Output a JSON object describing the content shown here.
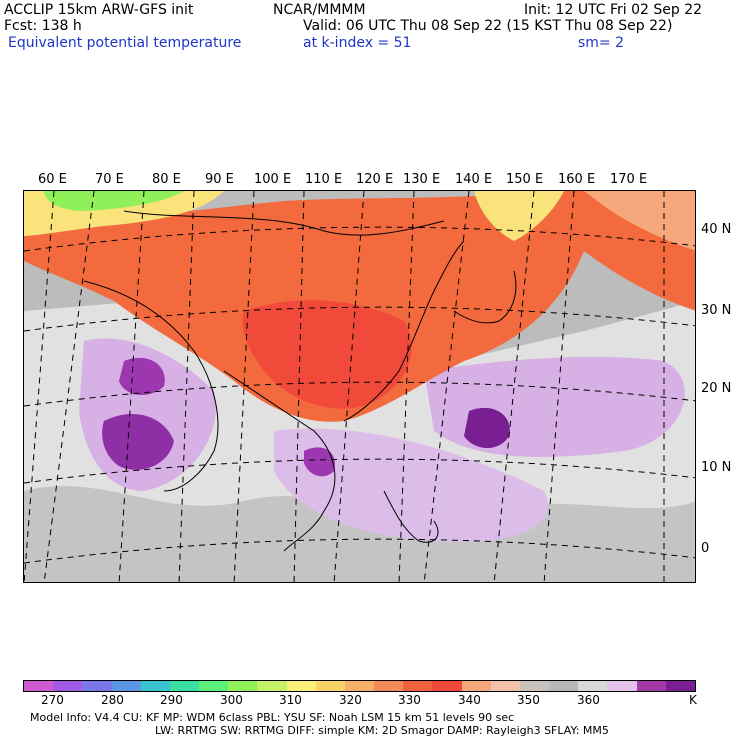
{
  "header": {
    "model_title": "ACCLIP 15km ARW-GFS init",
    "forecast": "Fcst:  138 h",
    "org": "NCAR/MMMM",
    "init": "Init: 12 UTC Fri 02 Sep 22",
    "valid": "Valid: 06 UTC Thu 08 Sep 22 (15 KST Thu 08 Sep 22)",
    "field_name": "Equivalent potential temperature",
    "level": "at k-index =  51",
    "smoothing": "sm= 2"
  },
  "map": {
    "longitude_labels": [
      "60 E",
      "70 E",
      "80 E",
      "90 E",
      "100 E",
      "110 E",
      "120 E",
      "130 E",
      "140 E",
      "150 E",
      "160 E",
      "170 E"
    ],
    "latitude_labels": [
      "40 N",
      "30 N",
      "20 N",
      "10 N",
      "0"
    ],
    "colors": {
      "warm_orange": "#f26a3d",
      "orange_red": "#f24a3a",
      "light_orange": "#f6a77b",
      "yellow": "#f9e37a",
      "green": "#8ff05a",
      "gray": "#bcbcbc",
      "light_gray": "#e1e1e1",
      "lavender": "#d7b0e6",
      "purple": "#9c37b0",
      "dark_purple": "#7a1f92"
    }
  },
  "colorbar": {
    "colors": [
      "#d05ad0",
      "#a05ae6",
      "#7a78e8",
      "#5a98e6",
      "#39c4cf",
      "#3adfa1",
      "#5af07a",
      "#8ff05a",
      "#c7f06a",
      "#f9f07a",
      "#f9d36a",
      "#f6b06a",
      "#f48a5a",
      "#f2623f",
      "#f24a3a",
      "#f6a77b",
      "#f2c2a8",
      "#c9c2bc",
      "#b8b8b8",
      "#d9d9d9",
      "#e3c2ea",
      "#a33aa8",
      "#7a1f92"
    ],
    "labels": [
      "270",
      "280",
      "290",
      "300",
      "310",
      "320",
      "330",
      "340",
      "350",
      "360"
    ],
    "unit": "K"
  },
  "footer": {
    "line1": "Model Info: V4.4      CU: KF       MP: WDM 6class  PBL: YSU       SF: Noah LSM    15 km   51 levels   90 sec",
    "line2": "LW: RRTMG   SW: RRTMG  DIFF: simple KM: 2D Smagor DAMP: Rayleigh3  SFLAY: MM5"
  }
}
